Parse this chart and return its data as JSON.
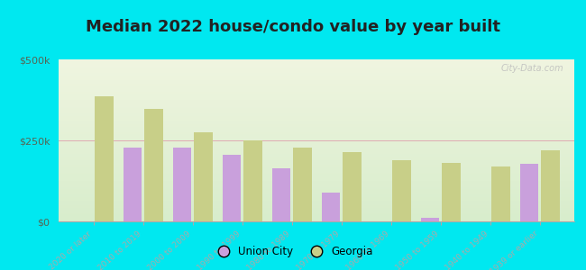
{
  "title": "Median 2022 house/condo value by year built",
  "categories": [
    "2020 or later",
    "2010 to 2019",
    "2000 to 2009",
    "1990 to 1999",
    "1980 to 1989",
    "1970 to 1979",
    "1960 to 1969",
    "1950 to 1959",
    "1940 to 1949",
    "1939 or earlier"
  ],
  "union_city": [
    null,
    228000,
    228000,
    205000,
    165000,
    90000,
    null,
    12000,
    null,
    178000
  ],
  "georgia": [
    385000,
    348000,
    275000,
    250000,
    228000,
    215000,
    190000,
    180000,
    170000,
    220000
  ],
  "union_city_color": "#c9a0dc",
  "georgia_color": "#c8cf88",
  "background_outer": "#00e8f0",
  "background_inner_top": "#f0f5e0",
  "background_inner_bottom": "#d8edcc",
  "ylim": [
    0,
    500000
  ],
  "yticks": [
    0,
    250000,
    500000
  ],
  "ytick_labels": [
    "$0",
    "$250k",
    "$500k"
  ],
  "bar_width": 0.38,
  "title_fontsize": 13,
  "legend_labels": [
    "Union City",
    "Georgia"
  ],
  "watermark": "City-Data.com"
}
